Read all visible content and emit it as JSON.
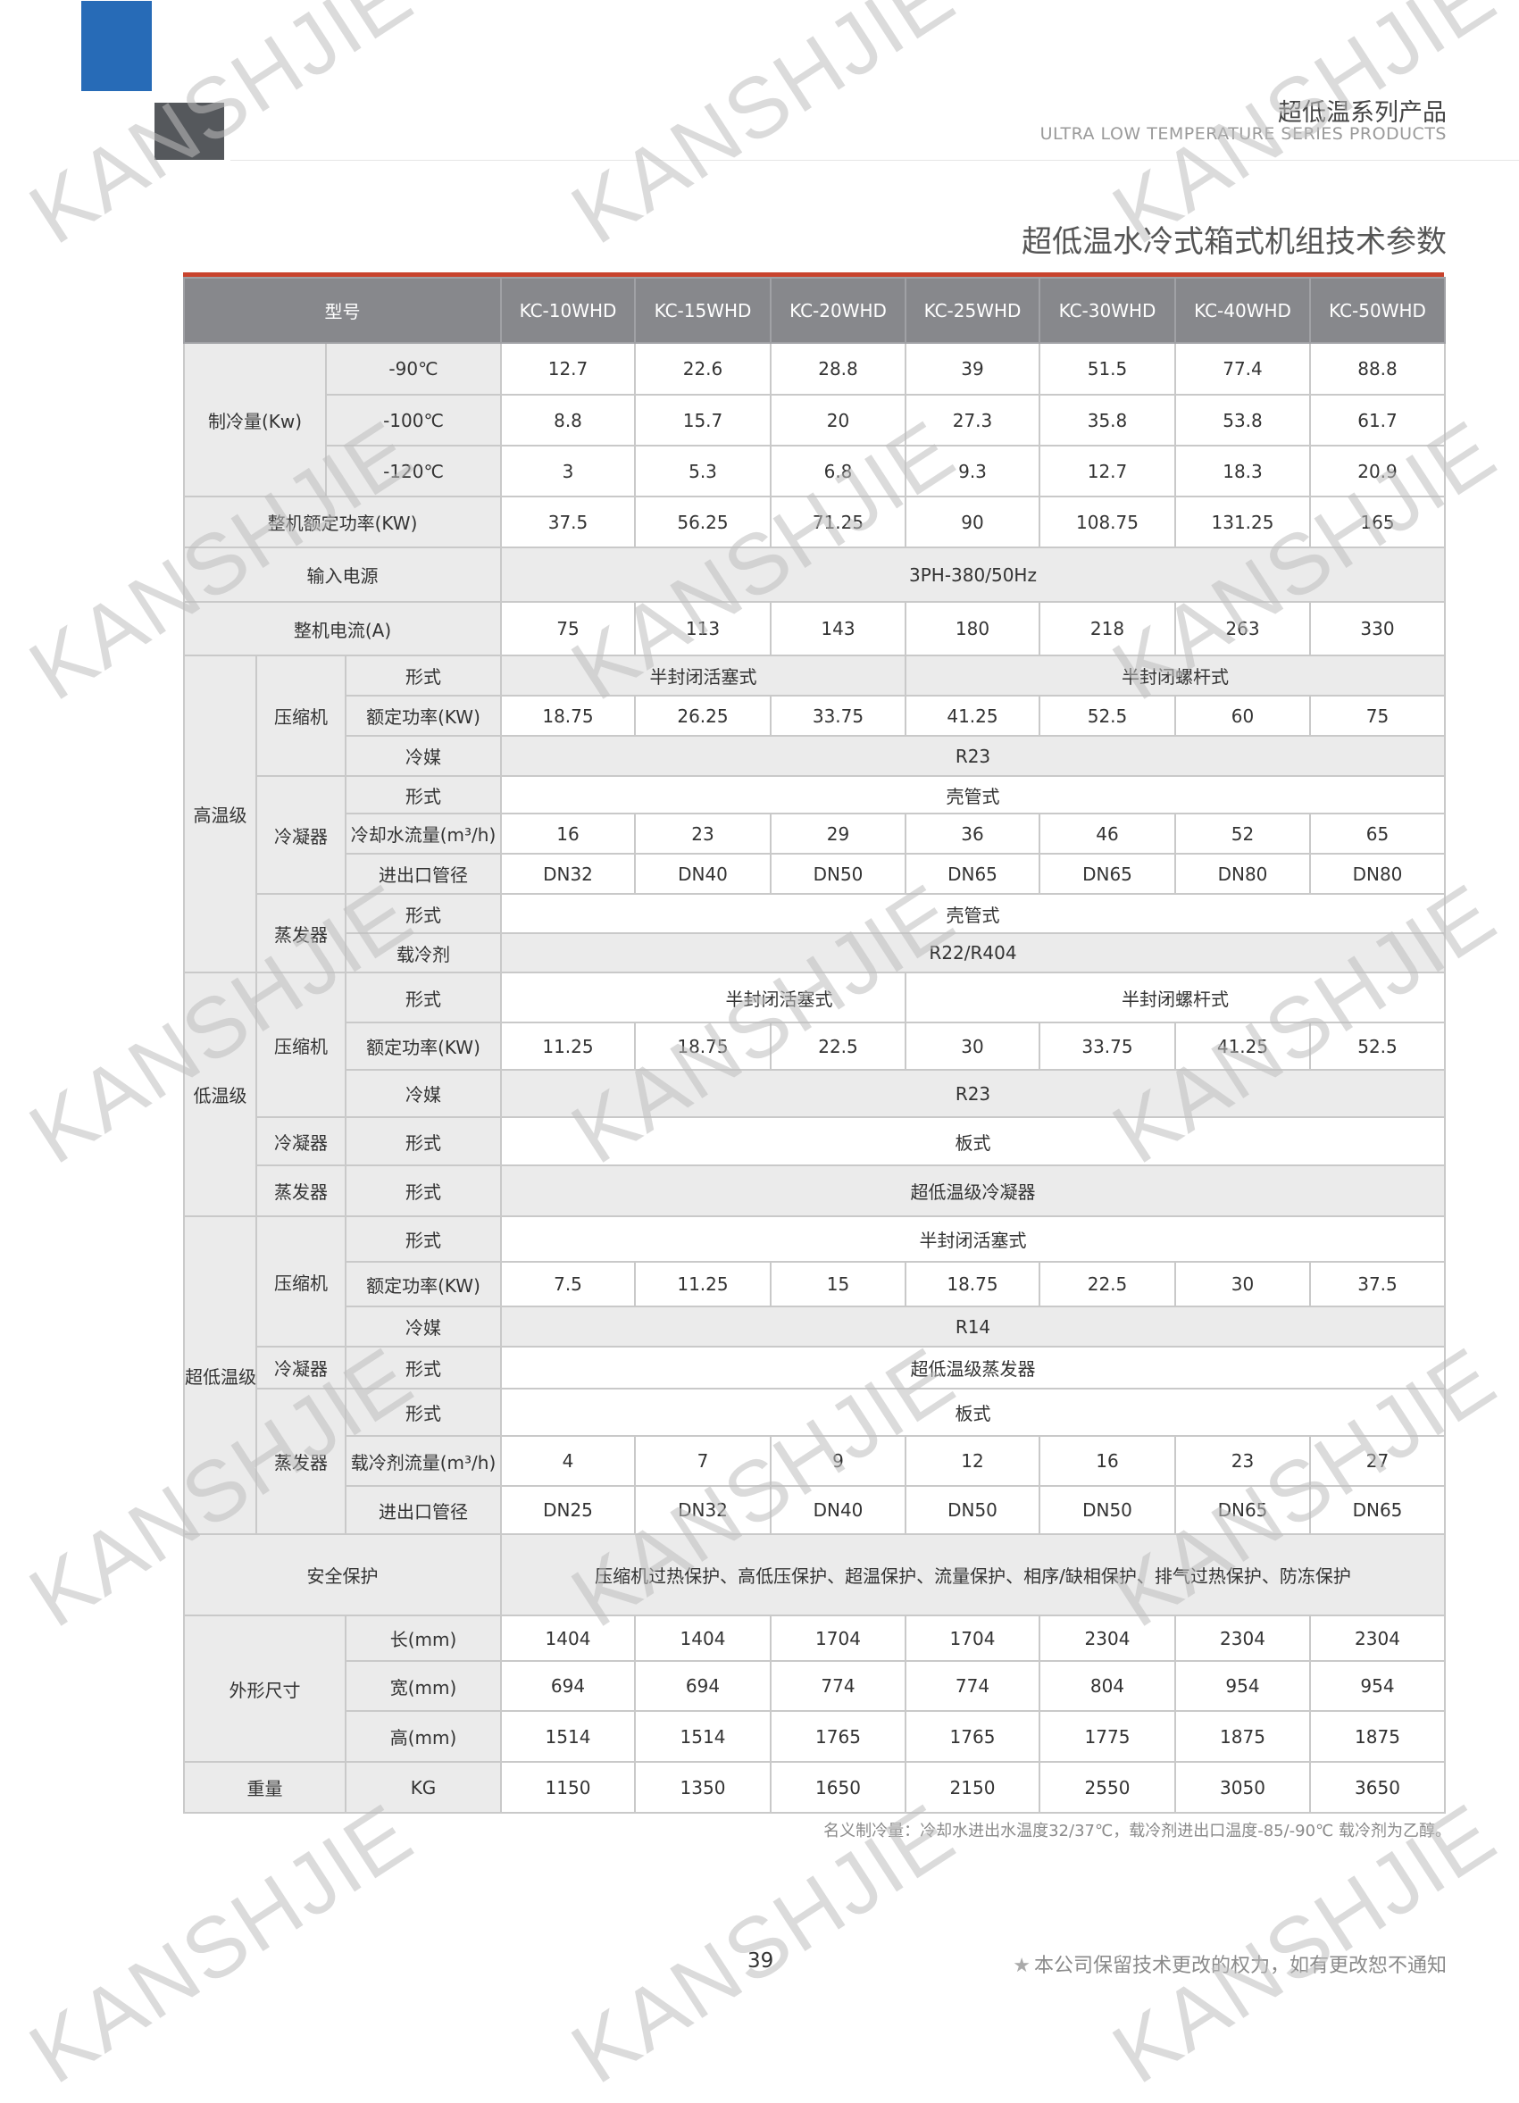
{
  "header": {
    "title_cn": "超低温系列产品",
    "title_en": "ULTRA LOW TEMPERATURE SERIES PRODUCTS"
  },
  "section_title": "超低温水冷式箱式机组技术参数",
  "table": {
    "model_label": "型号",
    "models": [
      "KC-10WHD",
      "KC-15WHD",
      "KC-20WHD",
      "KC-25WHD",
      "KC-30WHD",
      "KC-40WHD",
      "KC-50WHD"
    ],
    "cooling_capacity": {
      "label": "制冷量(Kw)",
      "rows": [
        {
          "label": "-90℃",
          "values": [
            "12.7",
            "22.6",
            "28.8",
            "39",
            "51.5",
            "77.4",
            "88.8"
          ]
        },
        {
          "label": "-100℃",
          "values": [
            "8.8",
            "15.7",
            "20",
            "27.3",
            "35.8",
            "53.8",
            "61.7"
          ]
        },
        {
          "label": "-120℃",
          "values": [
            "3",
            "5.3",
            "6.8",
            "9.3",
            "12.7",
            "18.3",
            "20.9"
          ]
        }
      ]
    },
    "rated_power": {
      "label": "整机额定功率(KW)",
      "values": [
        "37.5",
        "56.25",
        "71.25",
        "90",
        "108.75",
        "131.25",
        "165"
      ]
    },
    "power_supply": {
      "label": "输入电源",
      "value": "3PH-380/50Hz"
    },
    "current": {
      "label": "整机电流(A)",
      "values": [
        "75",
        "113",
        "143",
        "180",
        "218",
        "263",
        "330"
      ]
    },
    "high_stage": {
      "label": "高温级",
      "compressor": {
        "label": "压缩机",
        "type_label": "形式",
        "types": [
          "半封闭活塞式",
          "半封闭螺杆式"
        ],
        "power_label": "额定功率(KW)",
        "power": [
          "18.75",
          "26.25",
          "33.75",
          "41.25",
          "52.5",
          "60",
          "75"
        ],
        "refrigerant_label": "冷媒",
        "refrigerant": "R23"
      },
      "condenser": {
        "label": "冷凝器",
        "type_label": "形式",
        "type": "壳管式",
        "flow_label": "冷却水流量(m³/h)",
        "flow": [
          "16",
          "23",
          "29",
          "36",
          "46",
          "52",
          "65"
        ],
        "pipe_label": "进出口管径",
        "pipe": [
          "DN32",
          "DN40",
          "DN50",
          "DN65",
          "DN65",
          "DN80",
          "DN80"
        ]
      },
      "evaporator": {
        "label": "蒸发器",
        "type_label": "形式",
        "type": "壳管式",
        "coolant_label": "载冷剂",
        "coolant": "R22/R404"
      }
    },
    "low_stage": {
      "label": "低温级",
      "compressor": {
        "label": "压缩机",
        "type_label": "形式",
        "types": [
          "半封闭活塞式",
          "半封闭螺杆式"
        ],
        "power_label": "额定功率(KW)",
        "power": [
          "11.25",
          "18.75",
          "22.5",
          "30",
          "33.75",
          "41.25",
          "52.5"
        ],
        "refrigerant_label": "冷媒",
        "refrigerant": "R23"
      },
      "condenser": {
        "label": "冷凝器",
        "type_label": "形式",
        "type": "板式"
      },
      "evaporator": {
        "label": "蒸发器",
        "type_label": "形式",
        "type": "超低温级冷凝器"
      }
    },
    "ultra_low_stage": {
      "label": "超低温级",
      "compressor": {
        "label": "压缩机",
        "type_label": "形式",
        "type": "半封闭活塞式",
        "power_label": "额定功率(KW)",
        "power": [
          "7.5",
          "11.25",
          "15",
          "18.75",
          "22.5",
          "30",
          "37.5"
        ],
        "refrigerant_label": "冷媒",
        "refrigerant": "R14"
      },
      "condenser": {
        "label": "冷凝器",
        "type_label": "形式",
        "type": "超低温级蒸发器"
      },
      "evaporator": {
        "label": "蒸发器",
        "type_label": "形式",
        "type": "板式",
        "flow_label": "载冷剂流量(m³/h)",
        "flow": [
          "4",
          "7",
          "9",
          "12",
          "16",
          "23",
          "27"
        ],
        "pipe_label": "进出口管径",
        "pipe": [
          "DN25",
          "DN32",
          "DN40",
          "DN50",
          "DN50",
          "DN65",
          "DN65"
        ]
      }
    },
    "safety": {
      "label": "安全保护",
      "value": "压缩机过热保护、高低压保护、超温保护、流量保护、相序/缺相保护、排气过热保护、防冻保护"
    },
    "dimensions": {
      "label": "外形尺寸",
      "rows": [
        {
          "label": "长(mm)",
          "values": [
            "1404",
            "1404",
            "1704",
            "1704",
            "2304",
            "2304",
            "2304"
          ]
        },
        {
          "label": "宽(mm)",
          "values": [
            "694",
            "694",
            "774",
            "774",
            "804",
            "954",
            "954"
          ]
        },
        {
          "label": "高(mm)",
          "values": [
            "1514",
            "1514",
            "1765",
            "1765",
            "1775",
            "1875",
            "1875"
          ]
        }
      ]
    },
    "weight": {
      "label": "重量",
      "unit": "KG",
      "values": [
        "1150",
        "1350",
        "1650",
        "2150",
        "2550",
        "3050",
        "3650"
      ]
    }
  },
  "footnote": "名义制冷量：冷却水进出水温度32/37℃，载冷剂进出口温度-85/-90℃   载冷剂为乙醇。",
  "footer": {
    "page": "39",
    "notice_icon": "star-icon",
    "notice": "本公司保留技术更改的权力，如有更改恕不通知"
  },
  "watermark": "KANSHJIE",
  "colors": {
    "brand_blue": "#276bb7",
    "dark_gray": "#55585c",
    "accent_red": "#c8432d",
    "header_gray": "#87888c",
    "cell_gray": "#ebebeb"
  }
}
